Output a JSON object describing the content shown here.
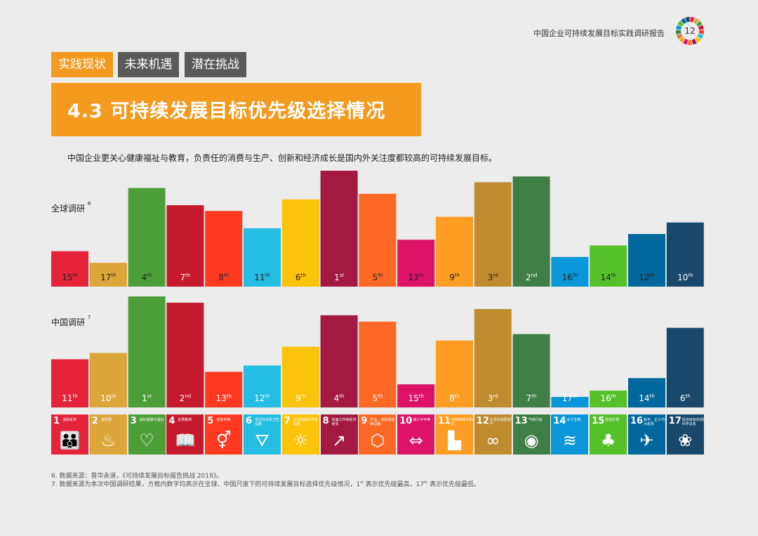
{
  "header": {
    "report_title": "中国企业可持续发展目标实践调研报告",
    "page_number": "12"
  },
  "tabs": [
    {
      "label": "实践现状",
      "color": "#f39a1f"
    },
    {
      "label": "未来机遇",
      "color": "#5a5a5a"
    },
    {
      "label": "潜在挑战",
      "color": "#5a5a5a"
    }
  ],
  "banner_title": "4.3 可持续发展目标优先级选择情况",
  "intro_text": "中国企业更关心健康福祉与教育，负责任的消费与生产、创新和经济成长是国内外关注度都较高的可持续发展目标。",
  "sdg_icons": [
    {
      "num": "1",
      "title": "消除贫穷",
      "glyph": "👪",
      "color": "#e5243b"
    },
    {
      "num": "2",
      "title": "零饥饿",
      "glyph": "♨",
      "color": "#dda63a"
    },
    {
      "num": "3",
      "title": "良好健康与福祉",
      "glyph": "♡",
      "color": "#4c9f38"
    },
    {
      "num": "4",
      "title": "优质教育",
      "glyph": "📖",
      "color": "#c5192d"
    },
    {
      "num": "5",
      "title": "性别平等",
      "glyph": "⚥",
      "color": "#ff3a21"
    },
    {
      "num": "6",
      "title": "清洁饮水和卫生设施",
      "glyph": "⛛",
      "color": "#26bde2"
    },
    {
      "num": "7",
      "title": "经济适用的清洁能源",
      "glyph": "☼",
      "color": "#fcc30b"
    },
    {
      "num": "8",
      "title": "体面工作和经济增长",
      "glyph": "↗",
      "color": "#a21942"
    },
    {
      "num": "9",
      "title": "产业、创新和基础设施",
      "glyph": "⬡",
      "color": "#fd6925"
    },
    {
      "num": "10",
      "title": "减少不平等",
      "glyph": "⇔",
      "color": "#dd1367"
    },
    {
      "num": "11",
      "title": "可持续城市和社区",
      "glyph": "▙",
      "color": "#fd9d24"
    },
    {
      "num": "12",
      "title": "负责任消费和生产",
      "glyph": "∞",
      "color": "#bf8b2e"
    },
    {
      "num": "13",
      "title": "气候行动",
      "glyph": "◉",
      "color": "#3f7e44"
    },
    {
      "num": "14",
      "title": "水下生物",
      "glyph": "≋",
      "color": "#0a97d9"
    },
    {
      "num": "15",
      "title": "陆地生物",
      "glyph": "♣",
      "color": "#56c02b"
    },
    {
      "num": "16",
      "title": "和平、正义与强大机构",
      "glyph": "✈",
      "color": "#00689d"
    },
    {
      "num": "17",
      "title": "促进目标实现的伙伴关系",
      "glyph": "❀",
      "color": "#19486a"
    }
  ],
  "footnotes": {
    "fn6": "6. 数据来源：普华永道，《可持续发展目标报告挑战 2019》。",
    "fn7_before_sup1": "7. 数据来源为本次中国调研结果，方框内数字均表示在全球、中国尺度下的可持续发展目标选择优先级情况，1",
    "fn7_sup1": "st",
    "fn7_between": " 表示优先级最高，17",
    "fn7_sup2": "th",
    "fn7_after": " 表示优先级最低。"
  },
  "chart_data": [
    {
      "type": "bar",
      "name": "全球调研",
      "label_text": "全球调研",
      "label_sup": "6",
      "categories": [
        "1",
        "2",
        "3",
        "4",
        "5",
        "6",
        "7",
        "8",
        "9",
        "10",
        "11",
        "12",
        "13",
        "14",
        "15",
        "16",
        "17"
      ],
      "ranks": [
        "15th",
        "17th",
        "4th",
        "7th",
        "8th",
        "11th",
        "6th",
        "1st",
        "5th",
        "13th",
        "9th",
        "3rd",
        "2nd",
        "16th",
        "14th",
        "12th",
        "10th"
      ],
      "values": [
        15,
        17,
        4,
        7,
        8,
        11,
        6,
        1,
        5,
        13,
        9,
        3,
        2,
        16,
        14,
        12,
        10
      ]
    },
    {
      "type": "bar",
      "name": "中国调研",
      "label_text": "中国调研",
      "label_sup": "7",
      "categories": [
        "1",
        "2",
        "3",
        "4",
        "5",
        "6",
        "7",
        "8",
        "9",
        "10",
        "11",
        "12",
        "13",
        "14",
        "15",
        "16",
        "17"
      ],
      "ranks": [
        "11th",
        "10th",
        "1st",
        "2nd",
        "13th",
        "12th",
        "9th",
        "4th",
        "5th",
        "15th",
        "8th",
        "3rd",
        "7th",
        "17th",
        "16th",
        "14th",
        "6th"
      ],
      "values": [
        11,
        10,
        1,
        2,
        13,
        12,
        9,
        4,
        5,
        15,
        8,
        3,
        7,
        17,
        16,
        14,
        6
      ]
    }
  ]
}
